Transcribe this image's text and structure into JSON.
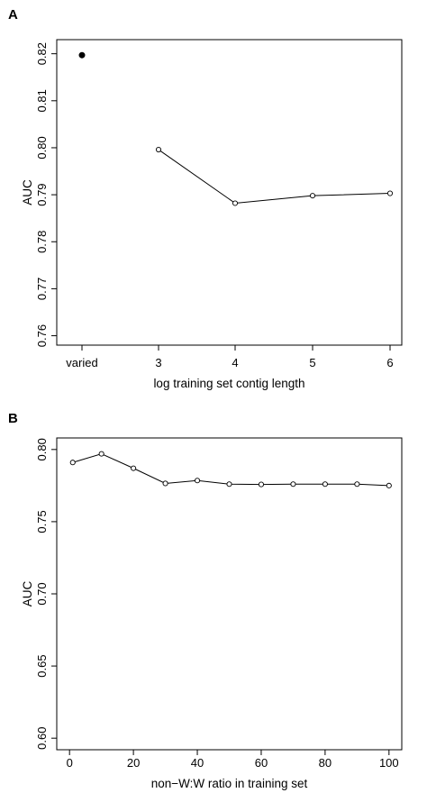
{
  "panels": {
    "a": {
      "letter": "A"
    },
    "b": {
      "letter": "B"
    }
  },
  "chart_data": [
    {
      "type": "line",
      "panel": "A",
      "xlabel": "log training set contig length",
      "ylabel": "AUC",
      "x_categories": [
        "varied",
        "3",
        "4",
        "5",
        "6"
      ],
      "y_ticks": [
        "0.76",
        "0.77",
        "0.78",
        "0.79",
        "0.80",
        "0.81",
        "0.82"
      ],
      "ylim": [
        0.758,
        0.823
      ],
      "series": [
        {
          "points": [
            {
              "x": "varied",
              "y": 0.8197
            }
          ],
          "marker": "filled",
          "connected": false
        },
        {
          "points": [
            {
              "x": "3",
              "y": 0.7996
            },
            {
              "x": "4",
              "y": 0.7882
            },
            {
              "x": "5",
              "y": 0.7898
            },
            {
              "x": "6",
              "y": 0.7903
            }
          ],
          "marker": "open",
          "connected": true
        }
      ],
      "grid": false
    },
    {
      "type": "line",
      "panel": "B",
      "xlabel": "non−W:W ratio in training set",
      "ylabel": "AUC",
      "x_ticks": [
        "0",
        "20",
        "40",
        "60",
        "80",
        "100"
      ],
      "y_ticks": [
        "0.60",
        "0.65",
        "0.70",
        "0.75",
        "0.80"
      ],
      "xlim": [
        -4,
        104
      ],
      "ylim": [
        0.592,
        0.808
      ],
      "series": [
        {
          "x": [
            1,
            10,
            20,
            30,
            40,
            50,
            60,
            70,
            80,
            90,
            100
          ],
          "y": [
            0.791,
            0.797,
            0.787,
            0.7765,
            0.7785,
            0.776,
            0.7758,
            0.776,
            0.776,
            0.776,
            0.775
          ],
          "marker": "open",
          "connected": true
        }
      ],
      "grid": false
    }
  ]
}
